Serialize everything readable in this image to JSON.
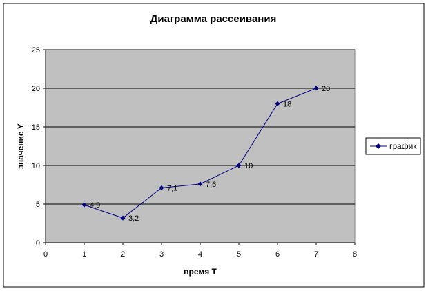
{
  "chart_data": {
    "type": "scatter",
    "title": "Диаграмма рассеивания",
    "xlabel": "время Т",
    "ylabel": "значение Y",
    "xlim": [
      0,
      8
    ],
    "ylim": [
      0,
      25
    ],
    "x_ticks": [
      "0",
      "1",
      "2",
      "3",
      "4",
      "5",
      "6",
      "7",
      "8"
    ],
    "y_ticks": [
      "0",
      "5",
      "10",
      "15",
      "20",
      "25"
    ],
    "grid": true,
    "legend": "right",
    "series": [
      {
        "name": "график",
        "color": "#000080",
        "marker": "diamond",
        "line": true,
        "x": [
          1,
          2,
          3,
          4,
          5,
          6,
          7
        ],
        "y": [
          4.9,
          3.2,
          7.1,
          7.6,
          10,
          18,
          20
        ],
        "labels": [
          "4,9",
          "3,2",
          "7,1",
          "7,6",
          "10",
          "18",
          "20"
        ]
      }
    ],
    "plot_background": "#c0c0c0"
  }
}
